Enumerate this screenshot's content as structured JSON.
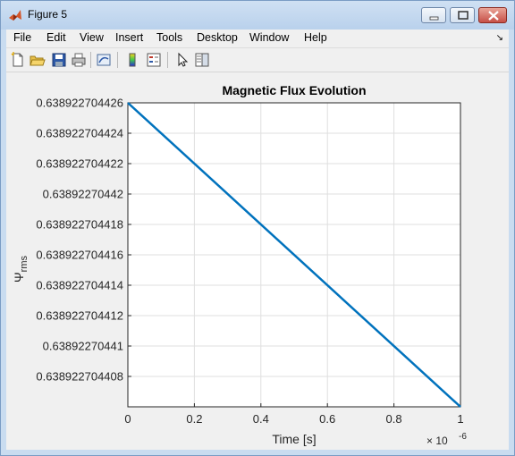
{
  "window": {
    "title": "Figure 5",
    "minimize_label": "",
    "accent_color": "#0072bd"
  },
  "menubar": {
    "items": [
      "File",
      "Edit",
      "View",
      "Insert",
      "Tools",
      "Desktop",
      "Window",
      "Help"
    ]
  },
  "toolbar": {
    "icons": [
      "new-figure-icon",
      "open-file-icon",
      "save-icon",
      "print-icon",
      "link-plot-icon",
      "colorbar-icon",
      "legend-icon",
      "pointer-icon",
      "property-editor-icon"
    ]
  },
  "chart_data": {
    "type": "line",
    "title": "Magnetic Flux Evolution",
    "xlabel": "Time [s]",
    "ylabel_main": "Ψ",
    "ylabel_sub": "rms",
    "x_exponent_label": "× 10",
    "x_exponent_power": "-6",
    "xlim": [
      0,
      1
    ],
    "ylim": [
      0.638922704406,
      0.638922704426
    ],
    "xticks": [
      0,
      0.2,
      0.4,
      0.6,
      0.8,
      1
    ],
    "xtick_labels": [
      "0",
      "0.2",
      "0.4",
      "0.6",
      "0.8",
      "1"
    ],
    "yticks": [
      0.638922704408,
      0.63892270441,
      0.638922704412,
      0.638922704414,
      0.638922704416,
      0.638922704418,
      0.63892270442,
      0.638922704422,
      0.638922704424,
      0.638922704426
    ],
    "ytick_labels": [
      "0.638922704408",
      "0.63892270441",
      "0.638922704412",
      "0.638922704414",
      "0.638922704416",
      "0.638922704418",
      "0.63892270442",
      "0.638922704422",
      "0.638922704424",
      "0.638922704426"
    ],
    "grid": true,
    "series": [
      {
        "color": "#0072bd",
        "x": [
          0,
          1
        ],
        "y": [
          0.638922704426,
          0.638922704406
        ]
      }
    ]
  }
}
